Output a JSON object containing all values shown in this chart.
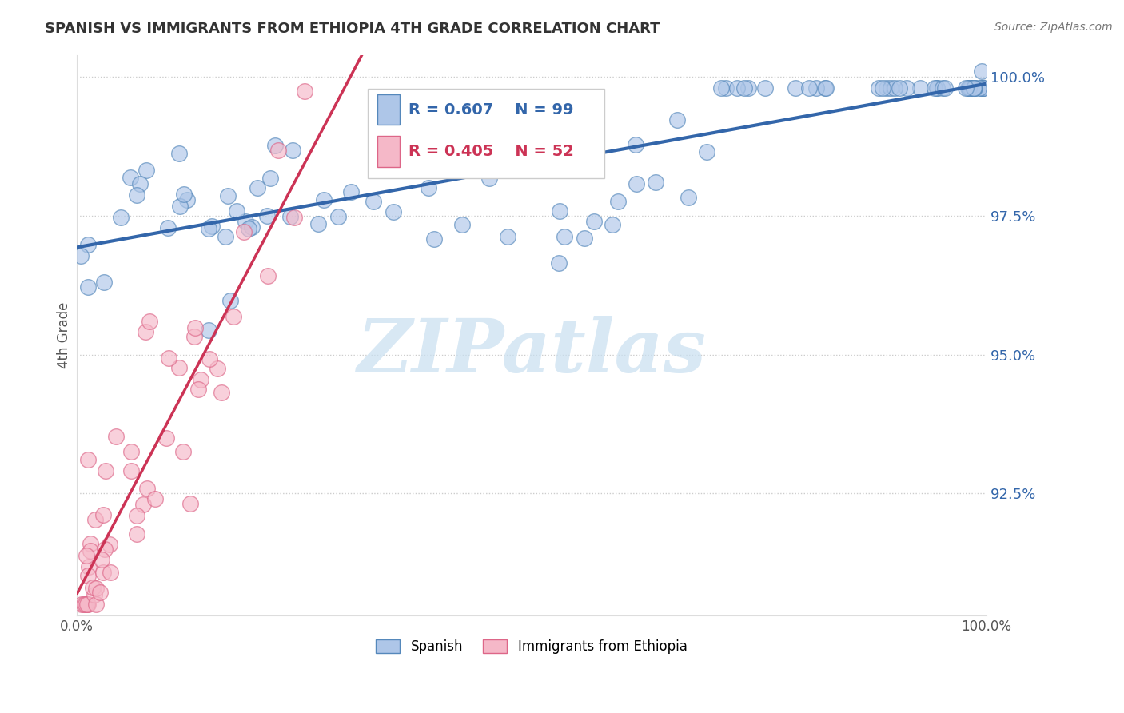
{
  "title": "SPANISH VS IMMIGRANTS FROM ETHIOPIA 4TH GRADE CORRELATION CHART",
  "source_text": "Source: ZipAtlas.com",
  "ylabel": "4th Grade",
  "xlim": [
    0.0,
    1.0
  ],
  "ylim": [
    0.903,
    1.004
  ],
  "yticks": [
    0.925,
    0.95,
    0.975,
    1.0
  ],
  "yticklabels": [
    "92.5%",
    "95.0%",
    "97.5%",
    "100.0%"
  ],
  "R_blue": 0.607,
  "N_blue": 99,
  "R_pink": 0.405,
  "N_pink": 52,
  "blue_color": "#aec6e8",
  "blue_edge_color": "#5588bb",
  "blue_line_color": "#3366aa",
  "pink_color": "#f5b8c8",
  "pink_edge_color": "#dd6688",
  "pink_line_color": "#cc3355",
  "legend_label_blue": "Spanish",
  "legend_label_pink": "Immigrants from Ethiopia",
  "watermark_text": "ZIPatlas",
  "watermark_color": "#c8dff0",
  "grid_color": "#cccccc",
  "title_color": "#333333",
  "source_color": "#777777",
  "ylabel_color": "#555555"
}
